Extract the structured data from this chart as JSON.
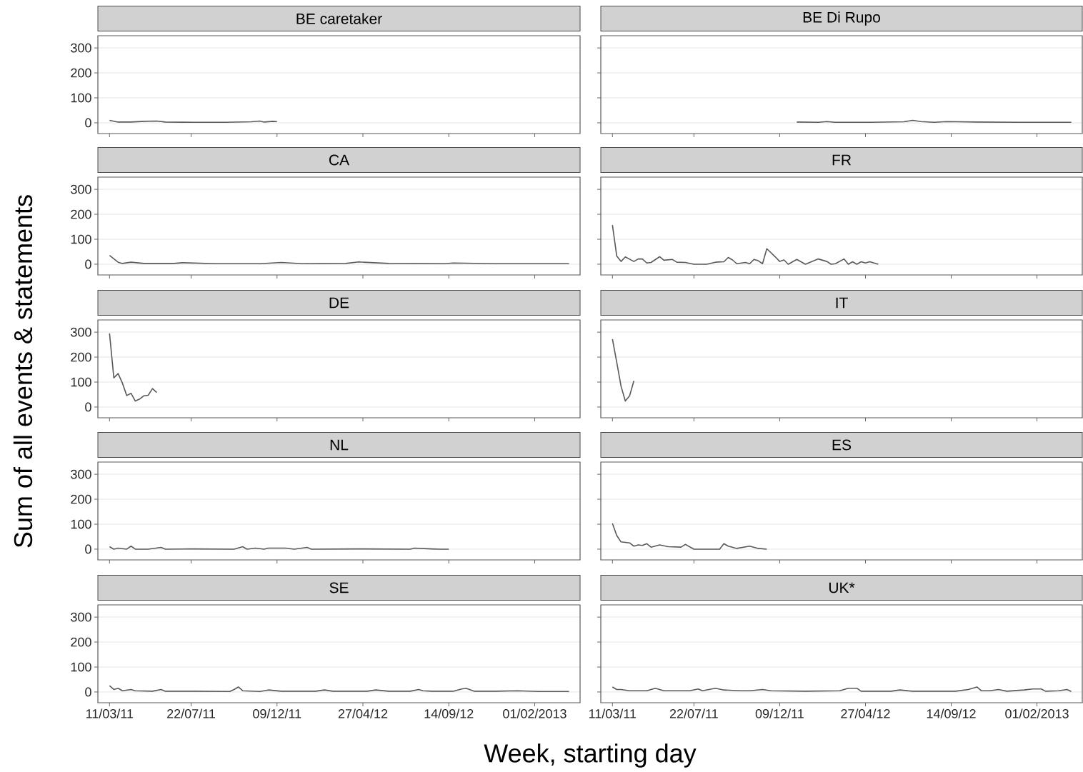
{
  "chart_data": [
    {
      "type": "line",
      "title": "BE caretaker",
      "color": "#595959",
      "grid": "y",
      "tick_labels": "y",
      "xlim": [
        "2011-02-20",
        "2013-04-16"
      ],
      "ylim": [
        -43,
        349
      ],
      "yticks": [
        0,
        100,
        200,
        300
      ],
      "xticks": [
        {
          "value": "2011-03-11",
          "label": null
        },
        {
          "value": "2011-07-22",
          "label": null
        },
        {
          "value": "2011-12-09",
          "label": null
        },
        {
          "value": "2012-04-27",
          "label": null
        },
        {
          "value": "2012-09-14",
          "label": null
        },
        {
          "value": "2013-02-01",
          "label": null
        }
      ],
      "x": [
        "2011-03-11",
        "2011-03-25",
        "2011-04-15",
        "2011-05-06",
        "2011-05-27",
        "2011-06-10",
        "2011-07-29",
        "2011-09-16",
        "2011-10-28",
        "2011-11-11",
        "2011-11-18",
        "2011-12-02",
        "2011-12-09"
      ],
      "values": [
        10,
        3,
        3,
        6,
        7,
        3,
        2,
        2,
        4,
        7,
        3,
        6,
        5
      ]
    },
    {
      "type": "line",
      "title": "BE Di Rupo",
      "color": "#595959",
      "grid": "y",
      "tick_labels": false,
      "xlim": [
        "2011-02-20",
        "2013-04-16"
      ],
      "ylim": [
        -43,
        349
      ],
      "yticks": [
        {
          "value": 0,
          "label": null
        },
        {
          "value": 100,
          "label": null
        },
        {
          "value": 200,
          "label": null
        },
        {
          "value": 300,
          "label": null
        }
      ],
      "xticks": [
        {
          "value": "2011-03-11",
          "label": null
        },
        {
          "value": "2011-07-22",
          "label": null
        },
        {
          "value": "2011-12-09",
          "label": null
        },
        {
          "value": "2012-04-27",
          "label": null
        },
        {
          "value": "2012-09-14",
          "label": null
        },
        {
          "value": "2013-02-01",
          "label": null
        }
      ],
      "x": [
        "2012-01-06",
        "2012-02-10",
        "2012-02-24",
        "2012-03-09",
        "2012-05-04",
        "2012-06-29",
        "2012-07-13",
        "2012-07-27",
        "2012-08-17",
        "2012-09-07",
        "2012-10-26",
        "2013-01-04",
        "2013-03-29"
      ],
      "values": [
        3,
        2,
        5,
        2,
        2,
        4,
        10,
        5,
        2,
        5,
        3,
        2,
        2
      ]
    },
    {
      "type": "line",
      "title": "CA",
      "color": "#595959",
      "grid": "y",
      "tick_labels": "y",
      "xlim": [
        "2011-02-20",
        "2013-04-16"
      ],
      "ylim": [
        -43,
        349
      ],
      "yticks": [
        0,
        100,
        200,
        300
      ],
      "xticks": [
        {
          "value": "2011-03-11",
          "label": null
        },
        {
          "value": "2011-07-22",
          "label": null
        },
        {
          "value": "2011-12-09",
          "label": null
        },
        {
          "value": "2012-04-27",
          "label": null
        },
        {
          "value": "2012-09-14",
          "label": null
        },
        {
          "value": "2013-02-01",
          "label": null
        }
      ],
      "x": [
        "2011-03-11",
        "2011-03-25",
        "2011-04-01",
        "2011-04-15",
        "2011-05-06",
        "2011-06-24",
        "2011-07-08",
        "2011-09-02",
        "2011-11-11",
        "2011-12-16",
        "2012-01-20",
        "2012-03-30",
        "2012-04-20",
        "2012-06-08",
        "2012-09-07",
        "2012-09-21",
        "2012-11-30",
        "2013-03-29"
      ],
      "values": [
        35,
        8,
        3,
        8,
        3,
        3,
        6,
        2,
        2,
        7,
        2,
        3,
        9,
        3,
        2,
        5,
        2,
        2
      ]
    },
    {
      "type": "line",
      "title": "FR",
      "color": "#595959",
      "grid": "y",
      "tick_labels": false,
      "xlim": [
        "2011-02-20",
        "2013-04-16"
      ],
      "ylim": [
        -43,
        349
      ],
      "yticks": [
        {
          "value": 0,
          "label": null
        },
        {
          "value": 100,
          "label": null
        },
        {
          "value": 200,
          "label": null
        },
        {
          "value": 300,
          "label": null
        }
      ],
      "xticks": [
        {
          "value": "2011-03-11",
          "label": null
        },
        {
          "value": "2011-07-22",
          "label": null
        },
        {
          "value": "2011-12-09",
          "label": null
        },
        {
          "value": "2012-04-27",
          "label": null
        },
        {
          "value": "2012-09-14",
          "label": null
        },
        {
          "value": "2013-02-01",
          "label": null
        }
      ],
      "x": [
        "2011-03-11",
        "2011-03-18",
        "2011-03-25",
        "2011-04-01",
        "2011-04-15",
        "2011-04-22",
        "2011-04-29",
        "2011-05-06",
        "2011-05-13",
        "2011-05-27",
        "2011-06-03",
        "2011-06-17",
        "2011-06-24",
        "2011-07-08",
        "2011-07-22",
        "2011-08-12",
        "2011-08-26",
        "2011-09-09",
        "2011-09-16",
        "2011-09-23",
        "2011-09-30",
        "2011-10-14",
        "2011-10-21",
        "2011-10-28",
        "2011-11-04",
        "2011-11-11",
        "2011-11-18",
        "2011-12-02",
        "2011-12-09",
        "2011-12-16",
        "2011-12-23",
        "2012-01-06",
        "2012-01-20",
        "2012-02-10",
        "2012-02-24",
        "2012-03-02",
        "2012-03-09",
        "2012-03-23",
        "2012-03-30",
        "2012-04-06",
        "2012-04-13",
        "2012-04-20",
        "2012-04-27",
        "2012-05-04",
        "2012-05-18"
      ],
      "values": [
        157,
        33,
        11,
        29,
        11,
        21,
        21,
        5,
        7,
        30,
        16,
        19,
        8,
        7,
        0,
        0,
        8,
        10,
        27,
        17,
        2,
        7,
        2,
        19,
        14,
        2,
        62,
        29,
        11,
        17,
        0,
        19,
        0,
        21,
        11,
        0,
        2,
        21,
        0,
        10,
        0,
        10,
        5,
        10,
        0
      ]
    },
    {
      "type": "line",
      "title": "DE",
      "ylabel": "Sum of all events & statements",
      "color": "#595959",
      "grid": "y",
      "tick_labels": "y",
      "xlim": [
        "2011-02-20",
        "2013-04-16"
      ],
      "ylim": [
        -43,
        349
      ],
      "yticks": [
        0,
        100,
        200,
        300
      ],
      "xticks": [
        {
          "value": "2011-03-11",
          "label": null
        },
        {
          "value": "2011-07-22",
          "label": null
        },
        {
          "value": "2011-12-09",
          "label": null
        },
        {
          "value": "2012-04-27",
          "label": null
        },
        {
          "value": "2012-09-14",
          "label": null
        },
        {
          "value": "2013-02-01",
          "label": null
        }
      ],
      "x": [
        "2011-03-11",
        "2011-03-18",
        "2011-03-25",
        "2011-04-01",
        "2011-04-08",
        "2011-04-15",
        "2011-04-22",
        "2011-04-29",
        "2011-05-06",
        "2011-05-13",
        "2011-05-20",
        "2011-05-27"
      ],
      "values": [
        295,
        117,
        134,
        96,
        46,
        55,
        24,
        32,
        45,
        47,
        74,
        58
      ]
    },
    {
      "type": "line",
      "title": "IT",
      "color": "#595959",
      "grid": "y",
      "tick_labels": false,
      "xlim": [
        "2011-02-20",
        "2013-04-16"
      ],
      "ylim": [
        -43,
        349
      ],
      "yticks": [
        {
          "value": 0,
          "label": null
        },
        {
          "value": 100,
          "label": null
        },
        {
          "value": 200,
          "label": null
        },
        {
          "value": 300,
          "label": null
        }
      ],
      "xticks": [
        {
          "value": "2011-03-11",
          "label": null
        },
        {
          "value": "2011-07-22",
          "label": null
        },
        {
          "value": "2011-12-09",
          "label": null
        },
        {
          "value": "2012-04-27",
          "label": null
        },
        {
          "value": "2012-09-14",
          "label": null
        },
        {
          "value": "2013-02-01",
          "label": null
        }
      ],
      "x": [
        "2011-03-11",
        "2011-03-18",
        "2011-03-25",
        "2011-04-01",
        "2011-04-08",
        "2011-04-15"
      ],
      "values": [
        272,
        180,
        84,
        24,
        45,
        105
      ]
    },
    {
      "type": "line",
      "title": "NL",
      "color": "#595959",
      "grid": "y",
      "tick_labels": "y",
      "xlim": [
        "2011-02-20",
        "2013-04-16"
      ],
      "ylim": [
        -43,
        349
      ],
      "yticks": [
        0,
        100,
        200,
        300
      ],
      "xticks": [
        {
          "value": "2011-03-11",
          "label": null
        },
        {
          "value": "2011-07-22",
          "label": null
        },
        {
          "value": "2011-12-09",
          "label": null
        },
        {
          "value": "2012-04-27",
          "label": null
        },
        {
          "value": "2012-09-14",
          "label": null
        },
        {
          "value": "2013-02-01",
          "label": null
        }
      ],
      "x": [
        "2011-03-11",
        "2011-03-18",
        "2011-03-25",
        "2011-04-08",
        "2011-04-15",
        "2011-04-22",
        "2011-05-13",
        "2011-06-03",
        "2011-06-10",
        "2011-07-22",
        "2011-09-30",
        "2011-10-14",
        "2011-10-21",
        "2011-11-04",
        "2011-11-18",
        "2011-11-25",
        "2011-12-23",
        "2012-01-06",
        "2012-01-27",
        "2012-02-03",
        "2012-04-20",
        "2012-07-13",
        "2012-07-20",
        "2012-08-17",
        "2012-08-31",
        "2012-09-14"
      ],
      "values": [
        10,
        0,
        4,
        0,
        12,
        0,
        0,
        7,
        0,
        1,
        0,
        10,
        0,
        4,
        0,
        4,
        4,
        0,
        7,
        0,
        1,
        0,
        4,
        1,
        0,
        0
      ]
    },
    {
      "type": "line",
      "title": "ES",
      "color": "#595959",
      "grid": "y",
      "tick_labels": false,
      "xlim": [
        "2011-02-20",
        "2013-04-16"
      ],
      "ylim": [
        -43,
        349
      ],
      "yticks": [
        {
          "value": 0,
          "label": null
        },
        {
          "value": 100,
          "label": null
        },
        {
          "value": 200,
          "label": null
        },
        {
          "value": 300,
          "label": null
        }
      ],
      "xticks": [
        {
          "value": "2011-03-11",
          "label": null
        },
        {
          "value": "2011-07-22",
          "label": null
        },
        {
          "value": "2011-12-09",
          "label": null
        },
        {
          "value": "2012-04-27",
          "label": null
        },
        {
          "value": "2012-09-14",
          "label": null
        },
        {
          "value": "2013-02-01",
          "label": null
        }
      ],
      "x": [
        "2011-03-11",
        "2011-03-18",
        "2011-03-25",
        "2011-04-08",
        "2011-04-15",
        "2011-04-22",
        "2011-04-29",
        "2011-05-06",
        "2011-05-13",
        "2011-05-27",
        "2011-06-10",
        "2011-07-01",
        "2011-07-08",
        "2011-07-22",
        "2011-08-12",
        "2011-09-02",
        "2011-09-09",
        "2011-09-16",
        "2011-09-30",
        "2011-10-21",
        "2011-11-04",
        "2011-11-18"
      ],
      "values": [
        103,
        55,
        29,
        25,
        12,
        17,
        15,
        22,
        8,
        17,
        10,
        8,
        19,
        0,
        0,
        0,
        22,
        12,
        3,
        12,
        3,
        0
      ]
    },
    {
      "type": "line",
      "title": "SE",
      "xlabel": "Week, starting day",
      "color": "#595959",
      "grid": "y",
      "xlim": [
        "2011-02-20",
        "2013-04-16"
      ],
      "ylim": [
        -43,
        349
      ],
      "yticks": [
        0,
        100,
        200,
        300
      ],
      "xticks": [
        {
          "value": "2011-03-11",
          "label": "11/03/11"
        },
        {
          "value": "2011-07-22",
          "label": "22/07/11"
        },
        {
          "value": "2011-12-09",
          "label": "09/12/11"
        },
        {
          "value": "2012-04-27",
          "label": "27/04/12"
        },
        {
          "value": "2012-09-14",
          "label": "14/09/12"
        },
        {
          "value": "2013-02-01",
          "label": "01/02/2013"
        }
      ],
      "x": [
        "2011-03-11",
        "2011-03-18",
        "2011-03-25",
        "2011-04-01",
        "2011-04-15",
        "2011-04-22",
        "2011-05-20",
        "2011-06-03",
        "2011-06-10",
        "2011-07-29",
        "2011-09-23",
        "2011-09-30",
        "2011-10-07",
        "2011-10-14",
        "2011-11-11",
        "2011-11-25",
        "2011-12-16",
        "2012-02-10",
        "2012-02-24",
        "2012-03-09",
        "2012-05-04",
        "2012-05-18",
        "2012-06-08",
        "2012-07-13",
        "2012-07-27",
        "2012-08-03",
        "2012-08-17",
        "2012-09-21",
        "2012-10-05",
        "2012-10-12",
        "2012-10-26",
        "2012-11-30",
        "2013-01-04",
        "2013-02-08",
        "2013-03-29"
      ],
      "values": [
        25,
        10,
        15,
        5,
        10,
        5,
        3,
        10,
        3,
        3,
        2,
        10,
        20,
        5,
        2,
        8,
        3,
        3,
        8,
        3,
        3,
        8,
        3,
        3,
        10,
        5,
        3,
        3,
        12,
        15,
        3,
        3,
        5,
        2,
        2
      ]
    },
    {
      "type": "line",
      "title": "UK*",
      "color": "#595959",
      "grid": "y",
      "tick_labels": "x",
      "xlim": [
        "2011-02-20",
        "2013-04-16"
      ],
      "ylim": [
        -43,
        349
      ],
      "yticks": [
        {
          "value": 0,
          "label": null
        },
        {
          "value": 100,
          "label": null
        },
        {
          "value": 200,
          "label": null
        },
        {
          "value": 300,
          "label": null
        }
      ],
      "xticks": [
        {
          "value": "2011-03-11",
          "label": "11/03/11"
        },
        {
          "value": "2011-07-22",
          "label": "22/07/11"
        },
        {
          "value": "2011-12-09",
          "label": "09/12/11"
        },
        {
          "value": "2012-04-27",
          "label": "27/04/12"
        },
        {
          "value": "2012-09-14",
          "label": "14/09/12"
        },
        {
          "value": "2013-02-01",
          "label": "01/02/2013"
        }
      ],
      "x": [
        "2011-03-11",
        "2011-03-18",
        "2011-03-25",
        "2011-04-08",
        "2011-05-06",
        "2011-05-20",
        "2011-06-03",
        "2011-07-15",
        "2011-07-29",
        "2011-08-05",
        "2011-08-26",
        "2011-09-09",
        "2011-10-07",
        "2011-10-21",
        "2011-11-11",
        "2011-11-25",
        "2012-01-20",
        "2012-03-16",
        "2012-03-30",
        "2012-04-13",
        "2012-04-20",
        "2012-06-08",
        "2012-06-22",
        "2012-07-13",
        "2012-09-21",
        "2012-10-12",
        "2012-10-26",
        "2012-11-02",
        "2012-11-16",
        "2012-11-30",
        "2012-12-14",
        "2013-01-11",
        "2013-01-25",
        "2013-02-08",
        "2013-02-15",
        "2013-03-08",
        "2013-03-22",
        "2013-03-29"
      ],
      "values": [
        20,
        10,
        10,
        5,
        5,
        15,
        5,
        5,
        12,
        5,
        15,
        8,
        5,
        5,
        10,
        5,
        3,
        5,
        15,
        15,
        3,
        3,
        8,
        3,
        3,
        10,
        20,
        5,
        5,
        10,
        3,
        8,
        12,
        12,
        3,
        5,
        10,
        2
      ]
    }
  ]
}
